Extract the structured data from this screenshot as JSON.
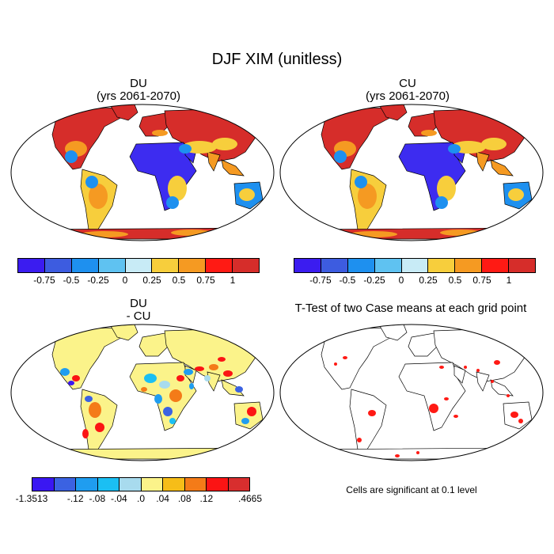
{
  "figure_title": "DJF XIM (unitless)",
  "panels": [
    {
      "title_line1": "DU",
      "title_line2": "(yrs 2061-2070)"
    },
    {
      "title_line1": "CU",
      "title_line2": "(yrs 2061-2070)"
    },
    {
      "title_line1": "DU",
      "title_line2": "- CU"
    },
    {
      "title_line1": "T-Test of two Case means at each grid point",
      "title_line2": ""
    }
  ],
  "colorbar_top": {
    "colors": [
      "#3b1cf0",
      "#3d5ce0",
      "#1e90ef",
      "#5fc2f1",
      "#c8ebf6",
      "#f7ce3c",
      "#f59a22",
      "#ff1a14",
      "#d62d2a"
    ],
    "labels": [
      "-0.75",
      "-0.5",
      "-0.25",
      "0",
      "0.25",
      "0.5",
      "0.75",
      "1"
    ]
  },
  "colorbar_diff": {
    "colors": [
      "#3a17f2",
      "#3b62e2",
      "#1f9df0",
      "#1bbff3",
      "#a8dbee",
      "#fbf38a",
      "#f6bd18",
      "#f47b18",
      "#fb1414",
      "#d82e2e"
    ],
    "labels": [
      "-1.3513",
      "-.12",
      "-.08",
      "-.04",
      ".0",
      ".04",
      ".08",
      ".12",
      ".4665"
    ]
  },
  "significance_note": "Cells are significant at 0.1 level",
  "map_colors": {
    "high_lat": "#d62d2a",
    "desert": "#3d2cf0",
    "mid_blue": "#1e90ef",
    "yellow": "#f7ce3c",
    "orange": "#f59a22",
    "diff_land": "#fbf38a",
    "sig": "#ff1a14"
  }
}
